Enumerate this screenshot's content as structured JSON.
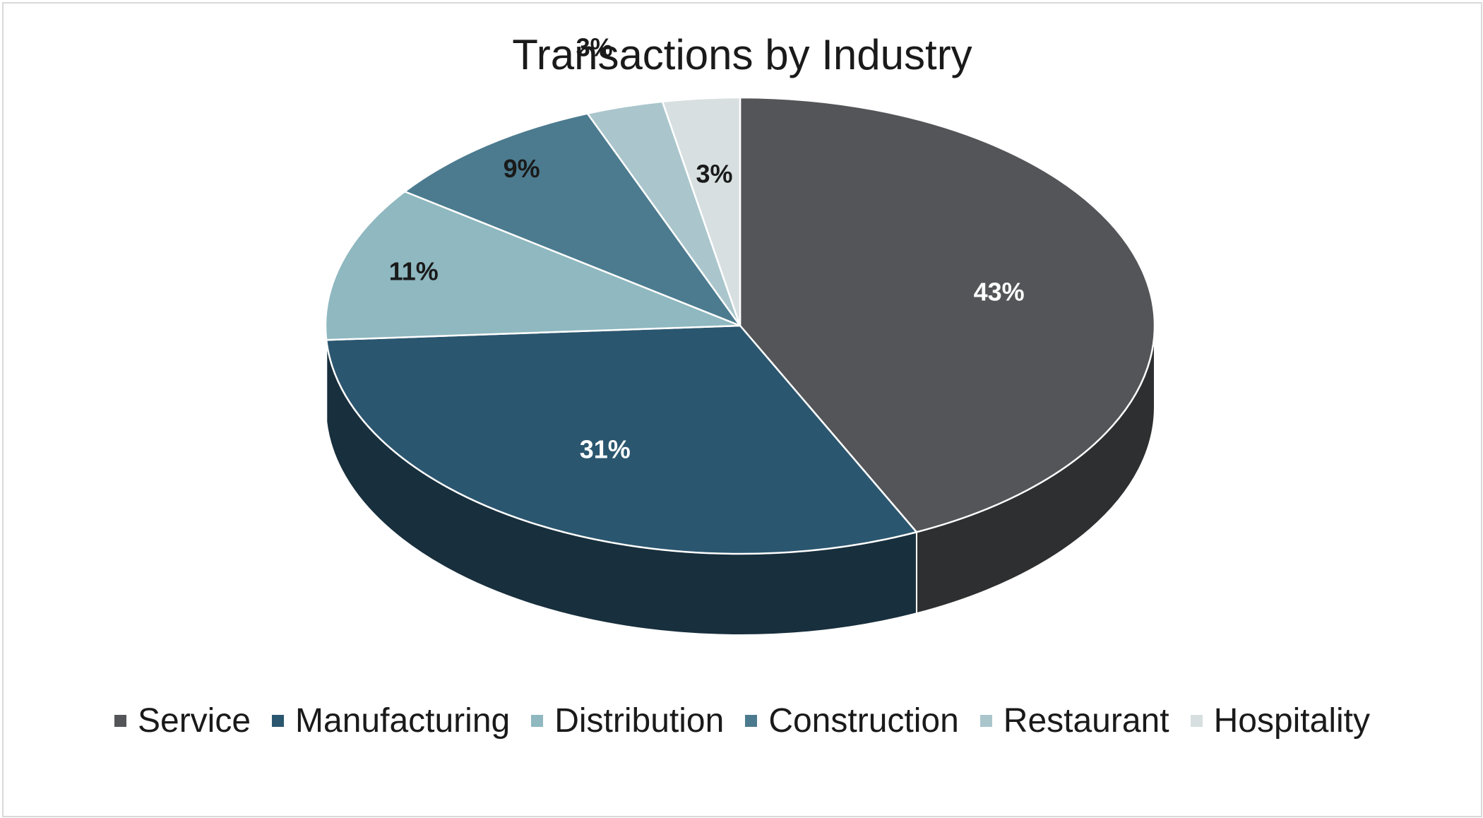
{
  "chart_data": {
    "type": "pie",
    "title": "Transactions by Industry",
    "categories": [
      "Service",
      "Manufacturing",
      "Distribution",
      "Construction",
      "Restaurant",
      "Hospitality"
    ],
    "values": [
      43,
      31,
      11,
      9,
      3,
      3
    ],
    "labels": [
      "43%",
      "31%",
      "11%",
      "9%",
      "3%",
      "3%"
    ],
    "colors": [
      "#545558",
      "#2b566f",
      "#8fb8c0",
      "#4c7b8f",
      "#aac6cc",
      "#d7dfe0"
    ],
    "label_colors": [
      "#ffffff",
      "#ffffff",
      "#1a1a1a",
      "#1a1a1a",
      "#1a1a1a",
      "#1a1a1a"
    ],
    "legend_position": "bottom",
    "style": "3d"
  }
}
